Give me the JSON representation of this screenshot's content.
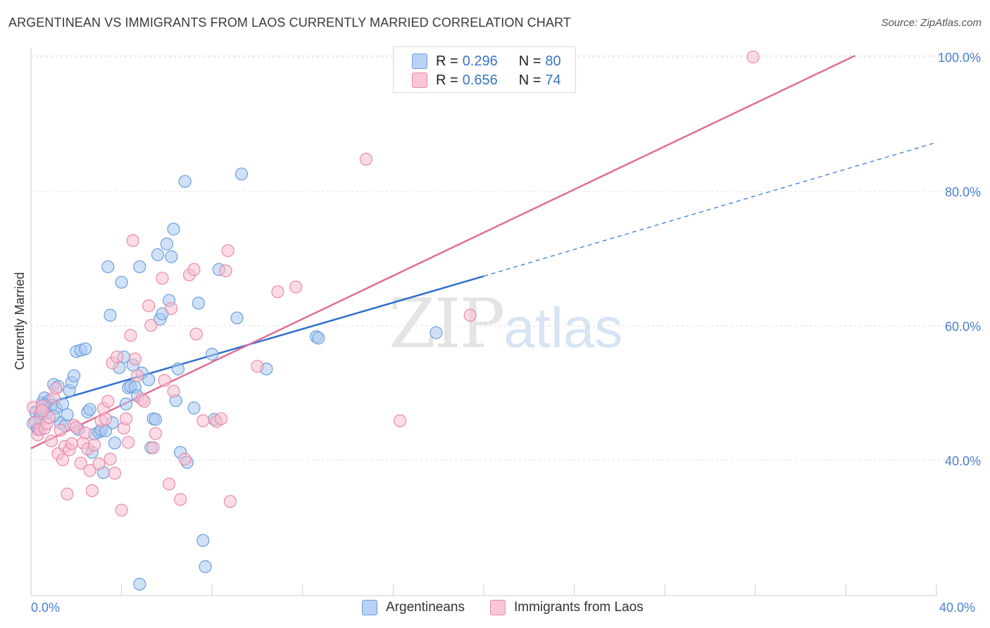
{
  "title": "ARGENTINEAN VS IMMIGRANTS FROM LAOS CURRENTLY MARRIED CORRELATION CHART",
  "source": "Source: ZipAtlas.com",
  "watermark": {
    "zip": "ZIP",
    "atlas": "atlas"
  },
  "legend": {
    "rows": [
      {
        "r_label": "R =",
        "r_value": "0.296",
        "n_label": "N =",
        "n_value": "80"
      },
      {
        "r_label": "R =",
        "r_value": "0.656",
        "n_label": "N =",
        "n_value": "74"
      }
    ]
  },
  "bottom_legend": [
    "Argentineans",
    "Immigrants from Laos"
  ],
  "colors": {
    "blue_fill": "#a9c8f0",
    "blue_stroke": "#6d9fdc",
    "blue_line": "#2f6fcf",
    "pink_fill": "#f7bfd0",
    "pink_stroke": "#e98aa9",
    "pink_line": "#e06d97"
  },
  "chart_data": {
    "type": "scatter",
    "title": "ARGENTINEAN VS IMMIGRANTS FROM LAOS CURRENTLY MARRIED CORRELATION CHART",
    "xlabel": "",
    "ylabel": "Currently Married",
    "xlim": [
      0,
      40
    ],
    "ylim": [
      20,
      102
    ],
    "x_tick_labels": [
      "0.0%",
      "40.0%"
    ],
    "y_ticks": [
      40,
      60,
      80,
      100
    ],
    "y_tick_labels": [
      "40.0%",
      "60.0%",
      "80.0%",
      "100.0%"
    ],
    "grid": true,
    "legend_placement": "top-center",
    "series": [
      {
        "name": "Argentineans",
        "R": 0.296,
        "N": 80,
        "trend": {
          "x0": 0,
          "y0": 47.8,
          "x1": 20,
          "y1": 67.4,
          "dashed_to_x": 40,
          "dashed_to_y": 87.3
        },
        "points": [
          [
            0.1,
            45.5
          ],
          [
            0.2,
            47.2
          ],
          [
            0.3,
            44.8
          ],
          [
            0.4,
            46.3
          ],
          [
            0.5,
            48.6
          ],
          [
            0.6,
            49.3
          ],
          [
            0.7,
            47.1
          ],
          [
            0.8,
            48.9
          ],
          [
            0.9,
            48.2
          ],
          [
            1.0,
            51.3
          ],
          [
            1.1,
            47.8
          ],
          [
            1.2,
            51.0
          ],
          [
            1.3,
            45.6
          ],
          [
            1.4,
            48.4
          ],
          [
            1.5,
            45.2
          ],
          [
            1.6,
            46.8
          ],
          [
            1.7,
            50.4
          ],
          [
            1.8,
            51.6
          ],
          [
            1.9,
            52.6
          ],
          [
            2.0,
            56.2
          ],
          [
            2.2,
            56.4
          ],
          [
            2.4,
            56.6
          ],
          [
            2.5,
            47.2
          ],
          [
            2.6,
            47.6
          ],
          [
            2.7,
            41.2
          ],
          [
            2.8,
            43.9
          ],
          [
            3.0,
            44.2
          ],
          [
            3.1,
            44.5
          ],
          [
            3.2,
            38.2
          ],
          [
            3.3,
            44.4
          ],
          [
            3.4,
            68.8
          ],
          [
            3.5,
            61.6
          ],
          [
            3.6,
            45.6
          ],
          [
            3.7,
            42.6
          ],
          [
            3.9,
            53.8
          ],
          [
            4.0,
            66.5
          ],
          [
            4.1,
            55.4
          ],
          [
            4.2,
            48.4
          ],
          [
            4.3,
            50.8
          ],
          [
            4.4,
            51.0
          ],
          [
            4.5,
            54.2
          ],
          [
            4.6,
            50.9
          ],
          [
            4.7,
            49.6
          ],
          [
            4.8,
            68.8
          ],
          [
            4.9,
            53.0
          ],
          [
            4.8,
            21.6
          ],
          [
            5.2,
            52.0
          ],
          [
            5.3,
            41.9
          ],
          [
            5.4,
            46.2
          ],
          [
            5.5,
            46.1
          ],
          [
            5.6,
            70.6
          ],
          [
            5.7,
            61.0
          ],
          [
            5.8,
            61.8
          ],
          [
            6.0,
            72.2
          ],
          [
            6.1,
            63.8
          ],
          [
            6.2,
            70.3
          ],
          [
            6.3,
            74.4
          ],
          [
            6.4,
            48.9
          ],
          [
            6.5,
            53.6
          ],
          [
            6.6,
            41.2
          ],
          [
            6.8,
            81.5
          ],
          [
            6.9,
            39.7
          ],
          [
            7.2,
            47.8
          ],
          [
            7.4,
            63.4
          ],
          [
            7.6,
            28.1
          ],
          [
            7.7,
            24.2
          ],
          [
            8.0,
            55.8
          ],
          [
            8.1,
            46.1
          ],
          [
            8.3,
            68.4
          ],
          [
            9.1,
            61.2
          ],
          [
            9.3,
            82.6
          ],
          [
            10.4,
            53.6
          ],
          [
            12.6,
            58.4
          ],
          [
            12.7,
            58.2
          ],
          [
            17.9,
            59.0
          ],
          [
            0.3,
            44.6
          ],
          [
            0.4,
            47.0
          ],
          [
            0.6,
            48.3
          ],
          [
            1.0,
            46.6
          ],
          [
            2.1,
            44.6
          ]
        ]
      },
      {
        "name": "Immigrants from Laos",
        "R": 0.656,
        "N": 74,
        "trend": {
          "x0": 0,
          "y0": 41.8,
          "x1": 36.4,
          "y1": 100.2
        },
        "points": [
          [
            0.1,
            47.9
          ],
          [
            0.2,
            45.7
          ],
          [
            0.3,
            43.8
          ],
          [
            0.4,
            44.6
          ],
          [
            0.5,
            48.1
          ],
          [
            0.6,
            44.8
          ],
          [
            0.7,
            45.5
          ],
          [
            0.8,
            46.4
          ],
          [
            0.9,
            42.9
          ],
          [
            1.0,
            49.3
          ],
          [
            1.1,
            50.7
          ],
          [
            1.2,
            41.0
          ],
          [
            1.3,
            44.5
          ],
          [
            1.4,
            40.1
          ],
          [
            1.5,
            42.1
          ],
          [
            1.6,
            35.0
          ],
          [
            1.7,
            41.6
          ],
          [
            1.8,
            42.5
          ],
          [
            1.9,
            45.2
          ],
          [
            2.0,
            44.9
          ],
          [
            2.2,
            39.6
          ],
          [
            2.3,
            42.6
          ],
          [
            2.5,
            41.7
          ],
          [
            2.6,
            38.5
          ],
          [
            2.7,
            35.5
          ],
          [
            2.8,
            42.3
          ],
          [
            3.0,
            39.5
          ],
          [
            3.1,
            45.9
          ],
          [
            3.2,
            47.7
          ],
          [
            3.3,
            46.2
          ],
          [
            3.4,
            48.8
          ],
          [
            3.5,
            40.2
          ],
          [
            3.6,
            54.5
          ],
          [
            3.7,
            38.1
          ],
          [
            3.8,
            55.4
          ],
          [
            4.0,
            32.6
          ],
          [
            4.1,
            44.8
          ],
          [
            4.2,
            46.2
          ],
          [
            4.3,
            42.7
          ],
          [
            4.4,
            58.6
          ],
          [
            4.5,
            72.7
          ],
          [
            4.6,
            55.1
          ],
          [
            4.7,
            52.6
          ],
          [
            4.9,
            49.1
          ],
          [
            5.0,
            48.8
          ],
          [
            5.2,
            63.0
          ],
          [
            5.3,
            60.1
          ],
          [
            5.4,
            41.9
          ],
          [
            5.5,
            44.0
          ],
          [
            5.8,
            67.1
          ],
          [
            5.9,
            51.9
          ],
          [
            6.1,
            36.5
          ],
          [
            6.2,
            62.6
          ],
          [
            6.3,
            50.3
          ],
          [
            6.6,
            34.2
          ],
          [
            6.8,
            40.2
          ],
          [
            7.0,
            67.6
          ],
          [
            7.2,
            68.4
          ],
          [
            7.3,
            58.8
          ],
          [
            7.6,
            45.9
          ],
          [
            8.2,
            45.8
          ],
          [
            8.4,
            46.2
          ],
          [
            8.6,
            68.2
          ],
          [
            8.7,
            71.2
          ],
          [
            8.8,
            33.9
          ],
          [
            10.0,
            54.0
          ],
          [
            10.9,
            65.1
          ],
          [
            11.7,
            65.8
          ],
          [
            14.8,
            84.8
          ],
          [
            16.3,
            45.9
          ],
          [
            19.4,
            61.6
          ],
          [
            31.9,
            100.0
          ],
          [
            0.5,
            47.4
          ],
          [
            2.4,
            44.1
          ]
        ]
      }
    ]
  }
}
